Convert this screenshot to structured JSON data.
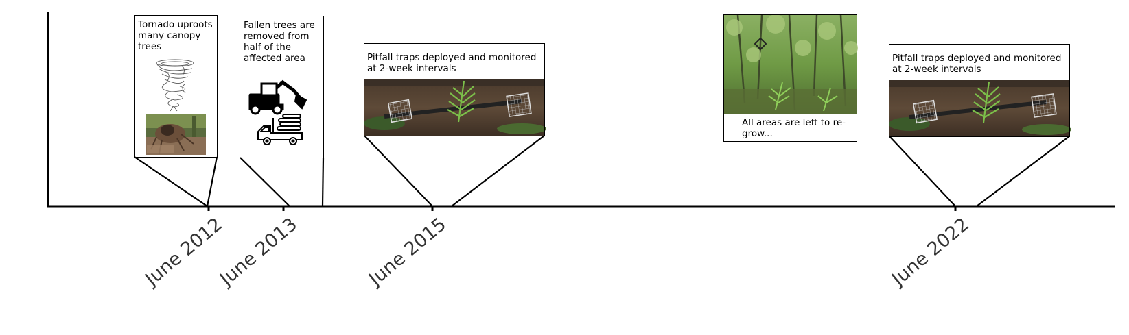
{
  "timeline": {
    "ticks": [
      {
        "label": "June 2012"
      },
      {
        "label": "June 2013"
      },
      {
        "label": "June 2015"
      },
      {
        "label": "June 2022"
      }
    ]
  },
  "events": {
    "tornado": {
      "text": "Tornado uproots many canopy trees",
      "icons": [
        "tornado-icon",
        "uprooted-tree-photo"
      ]
    },
    "removal": {
      "text": "Fallen trees are removed from half of the affected area",
      "icons": [
        "excavator-icon",
        "log-truck-icon"
      ]
    },
    "traps_2015": {
      "text": "Pitfall traps deployed and monitored at 2-week intervals",
      "icons": [
        "pitfall-trap-photo"
      ]
    },
    "regrow": {
      "text": "All areas are left to re-grow...",
      "icons": [
        "forest-regrowth-photo"
      ]
    },
    "traps_2022": {
      "text": "Pitfall traps deployed and monitored at 2-week intervals",
      "icons": [
        "pitfall-trap-photo"
      ]
    }
  },
  "colors": {
    "axis": "#000000",
    "tick_label": "#333333"
  }
}
